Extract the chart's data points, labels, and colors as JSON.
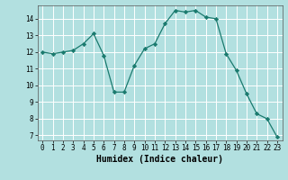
{
  "x": [
    0,
    1,
    2,
    3,
    4,
    5,
    6,
    7,
    8,
    9,
    10,
    11,
    12,
    13,
    14,
    15,
    16,
    17,
    18,
    19,
    20,
    21,
    22,
    23
  ],
  "y": [
    12.0,
    11.9,
    12.0,
    12.1,
    12.5,
    13.1,
    11.8,
    9.6,
    9.6,
    11.2,
    12.2,
    12.5,
    13.7,
    14.5,
    14.4,
    14.5,
    14.1,
    14.0,
    11.9,
    10.9,
    9.5,
    8.3,
    8.0,
    6.9
  ],
  "xlabel": "Humidex (Indice chaleur)",
  "xlim": [
    -0.5,
    23.5
  ],
  "ylim": [
    6.7,
    14.8
  ],
  "yticks": [
    7,
    8,
    9,
    10,
    11,
    12,
    13,
    14
  ],
  "xticks": [
    0,
    1,
    2,
    3,
    4,
    5,
    6,
    7,
    8,
    9,
    10,
    11,
    12,
    13,
    14,
    15,
    16,
    17,
    18,
    19,
    20,
    21,
    22,
    23
  ],
  "line_color": "#1a7a6e",
  "marker": "D",
  "marker_size": 2.2,
  "bg_color": "#b2e0e0",
  "grid_color": "#ffffff",
  "label_fontsize": 7,
  "tick_fontsize": 5.5
}
